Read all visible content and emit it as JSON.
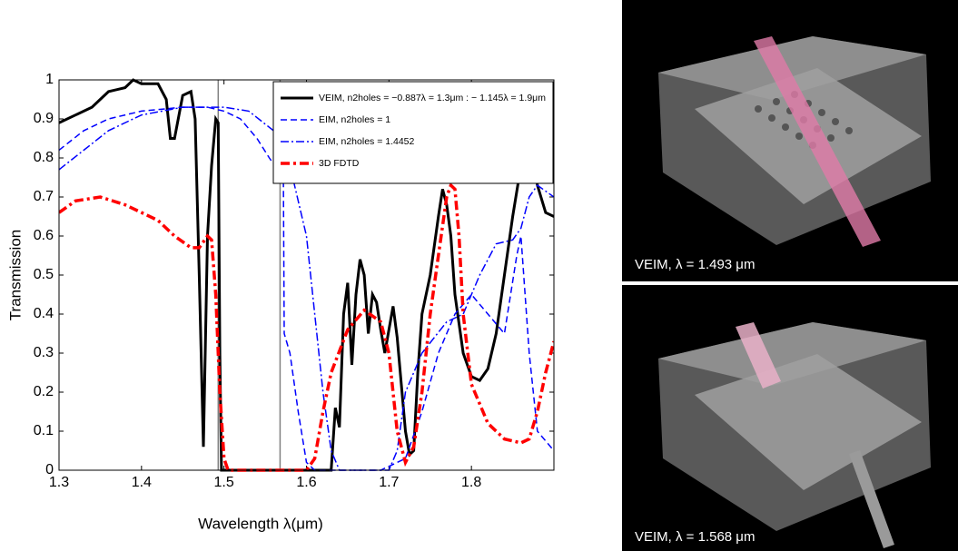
{
  "chart_data": {
    "type": "line",
    "xlabel": "Wavelength λ(μm)",
    "ylabel": "Transmission",
    "xlim": [
      1.3,
      1.9
    ],
    "ylim": [
      0,
      1
    ],
    "xticks": [
      1.3,
      1.4,
      1.5,
      1.6,
      1.7,
      1.8
    ],
    "yticks": [
      0,
      0.1,
      0.2,
      0.3,
      0.4,
      0.5,
      0.6,
      0.7,
      0.8,
      0.9,
      1
    ],
    "vlines": [
      1.493,
      1.568
    ],
    "vline_color": "#808080",
    "grid": false,
    "legend": "upper right",
    "series": [
      {
        "name": "VEIM, n2holes = −0.887λ = 1.3μm : − 1.145λ = 1.9μm",
        "color": "#000000",
        "style": "solid",
        "x": [
          1.3,
          1.32,
          1.34,
          1.36,
          1.38,
          1.39,
          1.4,
          1.41,
          1.42,
          1.43,
          1.435,
          1.44,
          1.45,
          1.46,
          1.465,
          1.47,
          1.475,
          1.48,
          1.485,
          1.49,
          1.493,
          1.495,
          1.497,
          1.5,
          1.6,
          1.63,
          1.635,
          1.64,
          1.645,
          1.65,
          1.655,
          1.66,
          1.665,
          1.67,
          1.675,
          1.68,
          1.685,
          1.69,
          1.695,
          1.7,
          1.705,
          1.71,
          1.72,
          1.725,
          1.73,
          1.735,
          1.74,
          1.75,
          1.76,
          1.765,
          1.77,
          1.775,
          1.78,
          1.79,
          1.8,
          1.81,
          1.82,
          1.83,
          1.84,
          1.85,
          1.86,
          1.87,
          1.88,
          1.89,
          1.9
        ],
        "values": [
          0.89,
          0.91,
          0.93,
          0.97,
          0.98,
          1,
          0.99,
          0.99,
          0.99,
          0.95,
          0.85,
          0.85,
          0.96,
          0.97,
          0.9,
          0.5,
          0.06,
          0.6,
          0.78,
          0.9,
          0.89,
          0.3,
          0,
          0,
          0,
          0,
          0.16,
          0.11,
          0.4,
          0.48,
          0.27,
          0.45,
          0.54,
          0.5,
          0.35,
          0.45,
          0.43,
          0.36,
          0.3,
          0.36,
          0.42,
          0.34,
          0.1,
          0.04,
          0.05,
          0.25,
          0.4,
          0.5,
          0.65,
          0.72,
          0.68,
          0.6,
          0.45,
          0.3,
          0.24,
          0.23,
          0.26,
          0.35,
          0.5,
          0.65,
          0.78,
          0.88,
          0.73,
          0.66,
          0.65
        ]
      },
      {
        "name": "EIM, n2holes = 1",
        "color": "#0000ff",
        "style": "dashed",
        "x": [
          1.3,
          1.33,
          1.36,
          1.4,
          1.45,
          1.48,
          1.5,
          1.52,
          1.54,
          1.555,
          1.565,
          1.572,
          1.573,
          1.58,
          1.59,
          1.6,
          1.61,
          1.66,
          1.69,
          1.72,
          1.74,
          1.76,
          1.78,
          1.8,
          1.82,
          1.84,
          1.855,
          1.86,
          1.87,
          1.88,
          1.9
        ],
        "values": [
          0.82,
          0.87,
          0.9,
          0.92,
          0.93,
          0.93,
          0.92,
          0.9,
          0.85,
          0.8,
          0.77,
          0.74,
          0.35,
          0.3,
          0.15,
          0.02,
          0,
          0,
          0,
          0.03,
          0.15,
          0.3,
          0.4,
          0.45,
          0.4,
          0.35,
          0.55,
          0.6,
          0.3,
          0.1,
          0.05
        ]
      },
      {
        "name": "EIM, n2holes = 1.4452",
        "color": "#0000ff",
        "style": "dashdot",
        "x": [
          1.3,
          1.33,
          1.36,
          1.4,
          1.45,
          1.5,
          1.53,
          1.56,
          1.58,
          1.6,
          1.61,
          1.62,
          1.63,
          1.64,
          1.7,
          1.71,
          1.72,
          1.74,
          1.77,
          1.79,
          1.81,
          1.83,
          1.85,
          1.86,
          1.87,
          1.88,
          1.9
        ],
        "values": [
          0.77,
          0.82,
          0.87,
          0.91,
          0.93,
          0.93,
          0.92,
          0.87,
          0.78,
          0.6,
          0.4,
          0.2,
          0.05,
          0,
          0,
          0.05,
          0.2,
          0.3,
          0.38,
          0.4,
          0.5,
          0.58,
          0.59,
          0.62,
          0.7,
          0.73,
          0.7
        ]
      },
      {
        "name": "3D FDTD",
        "color": "#ff0000",
        "style": "dashdot-thick",
        "x": [
          1.3,
          1.32,
          1.35,
          1.38,
          1.42,
          1.44,
          1.46,
          1.47,
          1.48,
          1.485,
          1.49,
          1.495,
          1.5,
          1.505,
          1.6,
          1.61,
          1.62,
          1.63,
          1.65,
          1.67,
          1.69,
          1.7,
          1.71,
          1.72,
          1.73,
          1.74,
          1.75,
          1.76,
          1.77,
          1.775,
          1.78,
          1.785,
          1.79,
          1.8,
          1.82,
          1.84,
          1.86,
          1.87,
          1.88,
          1.89,
          1.9
        ],
        "values": [
          0.66,
          0.69,
          0.7,
          0.68,
          0.64,
          0.6,
          0.57,
          0.57,
          0.6,
          0.59,
          0.45,
          0.2,
          0.03,
          0,
          0,
          0.03,
          0.15,
          0.25,
          0.36,
          0.41,
          0.38,
          0.3,
          0.1,
          0.02,
          0.06,
          0.2,
          0.4,
          0.55,
          0.7,
          0.73,
          0.72,
          0.6,
          0.4,
          0.22,
          0.12,
          0.08,
          0.07,
          0.08,
          0.15,
          0.25,
          0.33
        ]
      }
    ]
  },
  "panels": [
    {
      "caption": "VEIM, λ = 1.493 μm"
    },
    {
      "caption": "VEIM, λ = 1.568 μm"
    }
  ]
}
